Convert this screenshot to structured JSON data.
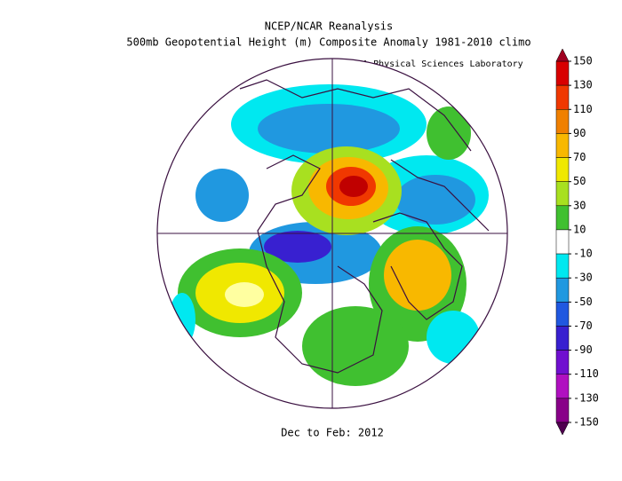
{
  "header": {
    "title": "NCEP/NCAR Reanalysis",
    "subtitle": "500mb Geopotential Height (m) Composite Anomaly 1981-2010 climo",
    "credit": "NOAA Physical Sciences Laboratory"
  },
  "footer": {
    "period": "Dec to Feb: 2012"
  },
  "colorbar": {
    "ticks": [
      150,
      130,
      110,
      90,
      70,
      50,
      30,
      10,
      -10,
      -30,
      -50,
      -70,
      -90,
      -110,
      -130,
      -150
    ],
    "top_color": "#a00020",
    "bottom_color": "#500050",
    "colors": [
      "#d80000",
      "#f03800",
      "#f08000",
      "#f8b800",
      "#f0e800",
      "#a8e020",
      "#40c030",
      "#ffffff",
      "#00e8f0",
      "#2098e0",
      "#2058e0",
      "#3820d0",
      "#7010d0",
      "#b010c0",
      "#880088"
    ]
  }
}
